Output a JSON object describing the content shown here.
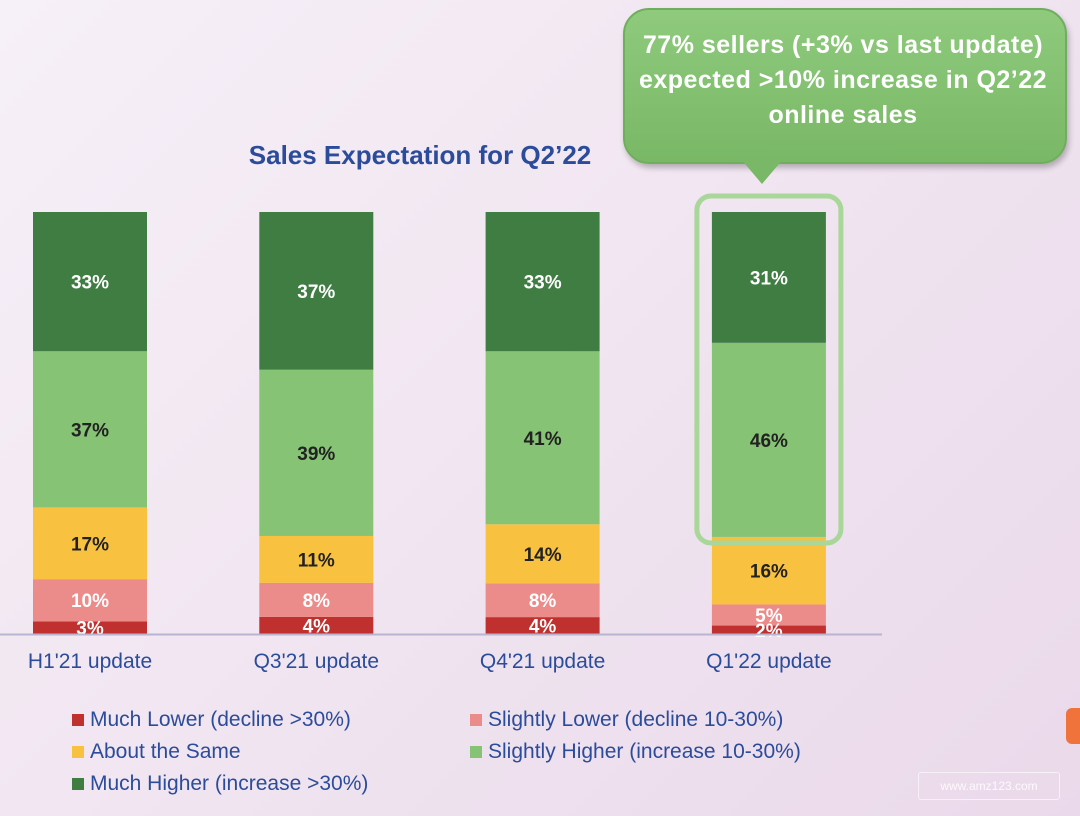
{
  "chart_data": {
    "type": "bar",
    "stacked": true,
    "title": "Sales Expectation for Q2’22",
    "categories": [
      "H1'21 update",
      "Q3'21 update",
      "Q4'21 update",
      "Q1'22 update"
    ],
    "series": [
      {
        "name": "Much Lower (decline >30%)",
        "color": "#c0302f",
        "values": [
          3,
          4,
          4,
          2
        ],
        "labels": [
          "3%",
          "4%",
          "4%",
          "2%"
        ]
      },
      {
        "name": "Slightly Lower (decline 10-30%)",
        "color": "#ec8c8a",
        "values": [
          10,
          8,
          8,
          5
        ],
        "labels": [
          "10%",
          "8%",
          "8%",
          "5%"
        ]
      },
      {
        "name": "About the Same",
        "color": "#f8c140",
        "values": [
          17,
          11,
          14,
          16
        ],
        "labels": [
          "17%",
          "11%",
          "14%",
          "16%"
        ]
      },
      {
        "name": "Slightly Higher (increase 10-30%)",
        "color": "#86c374",
        "values": [
          37,
          39,
          41,
          46
        ],
        "labels": [
          "37%",
          "39%",
          "41%",
          "46%"
        ]
      },
      {
        "name": "Much Higher (increase >30%)",
        "color": "#3f7d43",
        "values": [
          33,
          37,
          33,
          31
        ],
        "labels": [
          "33%",
          "37%",
          "33%",
          "31%"
        ]
      }
    ],
    "ylim": [
      0,
      100
    ],
    "grid": false,
    "legend": "bottom",
    "highlight_category": "Q1'22 update",
    "highlight_series": [
      "Slightly Higher (increase 10-30%)",
      "Much Higher (increase >30%)"
    ]
  },
  "callout": {
    "text": "77% sellers (+3% vs last update) expected >10% increase in Q2’22 online sales",
    "color": "#7fbe6c"
  },
  "watermark": "www.amz123.com"
}
